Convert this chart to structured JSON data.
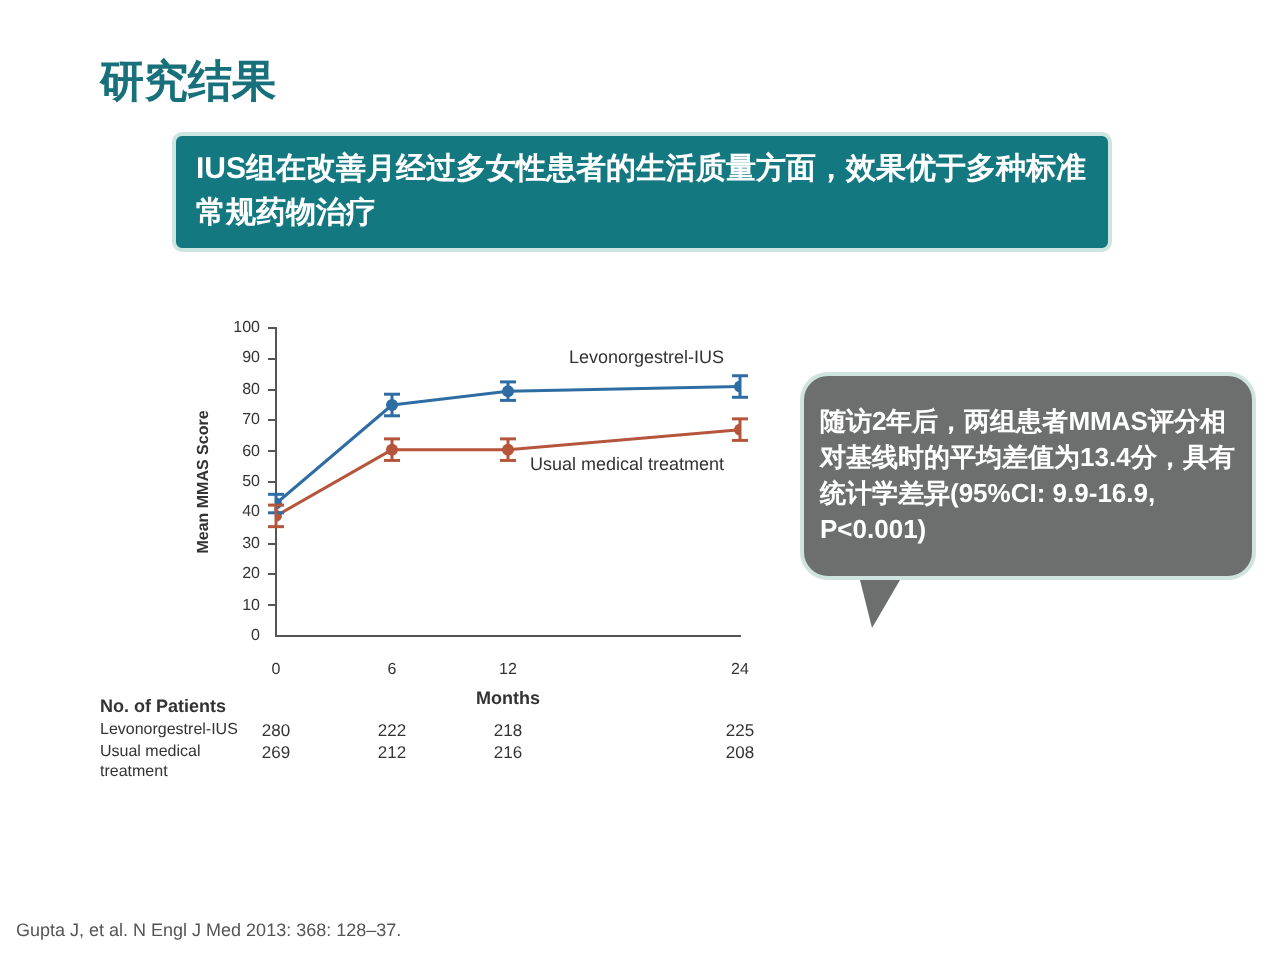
{
  "chart_data": {
    "type": "line",
    "title": "研究结果",
    "subtitle": "IUS组在改善月经过多女性患者的生活质量方面，效果优于多种标准常规药物治疗",
    "xlabel": "Months",
    "ylabel": "Mean MMAS Score",
    "x": [
      0,
      6,
      12,
      24
    ],
    "xlim": [
      0,
      24
    ],
    "xticks": [
      0,
      6,
      12,
      24
    ],
    "ylim": [
      0,
      100
    ],
    "yticks": [
      0,
      10,
      20,
      30,
      40,
      50,
      60,
      70,
      80,
      90,
      100
    ],
    "series": [
      {
        "name": "Levonorgestrel-IUS",
        "color": "#2e6da4",
        "values": [
          43,
          75,
          79.5,
          81
        ],
        "errors": [
          3,
          3.5,
          3,
          3.5
        ]
      },
      {
        "name": "Usual medical treatment",
        "color": "#b5553c",
        "values": [
          39,
          60.5,
          60.5,
          67
        ],
        "errors": [
          3.5,
          3.5,
          3.5,
          3.5
        ]
      }
    ],
    "grid": false,
    "legend": "right",
    "marker": "circle",
    "line_style": "solid",
    "annotations": [
      "No. of Patients",
      "Levonorgestrel-IUS",
      "280",
      "222",
      "218",
      "225",
      "Usual medical treatment",
      "269",
      "212",
      "216",
      "208",
      "随访2年后，两组患者MMAS评分相对基线时的平均差值为13.4分，具有统计学差异(95%CI: 9.9-16.9, P<0.001)",
      "Gupta J, et al. N Engl J Med 2013: 368: 128–37."
    ]
  }
}
